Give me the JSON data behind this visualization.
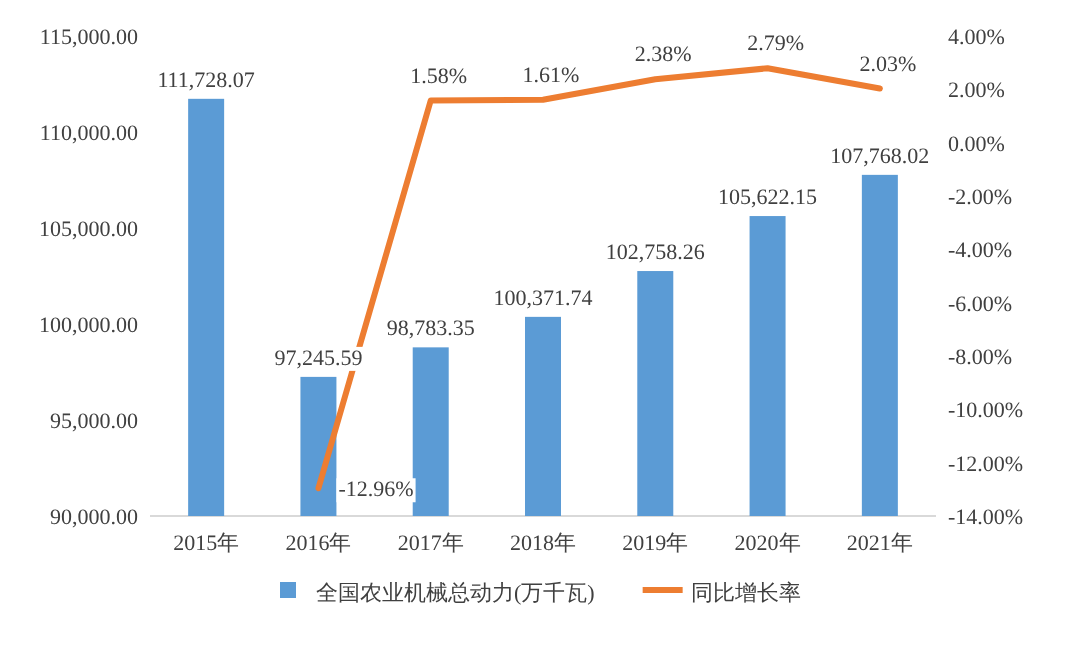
{
  "chart_data": {
    "type": "bar",
    "categories": [
      "2015年",
      "2016年",
      "2017年",
      "2018年",
      "2019年",
      "2020年",
      "2021年"
    ],
    "series": [
      {
        "name": "全国农业机械总动力(万千瓦)",
        "color": "#5b9bd5",
        "values": [
          111728.07,
          97245.59,
          98783.35,
          100371.74,
          102758.26,
          105622.15,
          107768.02
        ],
        "value_labels": [
          "111,728.07",
          "97,245.59",
          "98,783.35",
          "100,371.74",
          "102,758.26",
          "105,622.15",
          "107,768.02"
        ]
      },
      {
        "name": "同比增长率",
        "type": "line",
        "axis": "y2",
        "color": "#ed7d31",
        "values": [
          null,
          -12.96,
          1.58,
          1.61,
          2.38,
          2.79,
          2.03
        ],
        "value_labels": [
          null,
          "-12.96%",
          "1.58%",
          "1.61%",
          "2.38%",
          "2.79%",
          "2.03%"
        ]
      }
    ],
    "ylim": [
      90000,
      115000
    ],
    "yticks": [
      {
        "value": 90000,
        "label": "90,000.00"
      },
      {
        "value": 95000,
        "label": "95,000.00"
      },
      {
        "value": 100000,
        "label": "100,000.00"
      },
      {
        "value": 105000,
        "label": "105,000.00"
      },
      {
        "value": 110000,
        "label": "110,000.00"
      },
      {
        "value": 115000,
        "label": "115,000.00"
      }
    ],
    "y2lim": [
      -14,
      4
    ],
    "y2ticks": [
      {
        "value": -14,
        "label": "-14.00%"
      },
      {
        "value": -12,
        "label": "-12.00%"
      },
      {
        "value": -10,
        "label": "-10.00%"
      },
      {
        "value": -8,
        "label": "-8.00%"
      },
      {
        "value": -6,
        "label": "-6.00%"
      },
      {
        "value": -4,
        "label": "-4.00%"
      },
      {
        "value": -2,
        "label": "-2.00%"
      },
      {
        "value": 0,
        "label": "0.00%"
      },
      {
        "value": 2,
        "label": "2.00%"
      },
      {
        "value": 4,
        "label": "4.00%"
      }
    ],
    "legend": "bottom",
    "marker": "none",
    "line_style": "solid"
  }
}
